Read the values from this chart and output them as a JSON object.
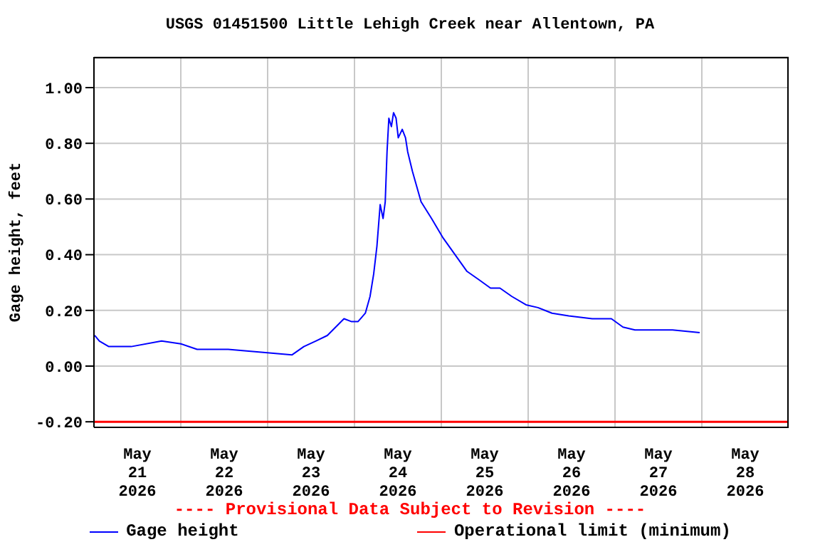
{
  "chart_data": {
    "type": "line",
    "title": "USGS 01451500 Little Lehigh Creek near Allentown, PA",
    "ylabel": "Gage height, feet",
    "x": [
      "2026-05-21T00:12",
      "2026-05-21T01:30",
      "2026-05-21T04:06",
      "2026-05-21T10:18",
      "2026-05-21T18:42",
      "2026-05-22T00:00",
      "2026-05-22T04:30",
      "2026-05-22T13:06",
      "2026-05-22T22:12",
      "2026-05-23T06:42",
      "2026-05-23T10:00",
      "2026-05-23T13:18",
      "2026-05-23T16:30",
      "2026-05-23T21:06",
      "2026-05-23T23:06",
      "2026-05-24T01:00",
      "2026-05-24T03:00",
      "2026-05-24T04:18",
      "2026-05-24T05:18",
      "2026-05-24T06:12",
      "2026-05-24T07:06",
      "2026-05-24T07:54",
      "2026-05-24T08:30",
      "2026-05-24T09:00",
      "2026-05-24T09:30",
      "2026-05-24T10:12",
      "2026-05-24T10:48",
      "2026-05-24T11:30",
      "2026-05-24T12:06",
      "2026-05-24T13:12",
      "2026-05-24T14:06",
      "2026-05-24T14:42",
      "2026-05-24T16:00",
      "2026-05-24T18:24",
      "2026-05-24T21:18",
      "2026-05-25T00:30",
      "2026-05-25T03:48",
      "2026-05-25T07:06",
      "2026-05-25T10:24",
      "2026-05-25T13:36",
      "2026-05-25T16:12",
      "2026-05-25T19:30",
      "2026-05-25T23:24",
      "2026-05-26T02:42",
      "2026-05-26T06:36",
      "2026-05-26T11:12",
      "2026-05-26T17:42",
      "2026-05-26T23:00",
      "2026-05-27T02:12",
      "2026-05-27T05:30",
      "2026-05-27T15:54",
      "2026-05-27T23:24"
    ],
    "series": [
      {
        "name": "Gage height",
        "color": "#0000ff",
        "values": [
          0.11,
          0.09,
          0.07,
          0.07,
          0.09,
          0.08,
          0.06,
          0.06,
          0.05,
          0.04,
          0.07,
          0.09,
          0.11,
          0.17,
          0.16,
          0.16,
          0.19,
          0.25,
          0.33,
          0.43,
          0.58,
          0.53,
          0.59,
          0.77,
          0.89,
          0.86,
          0.91,
          0.89,
          0.82,
          0.85,
          0.82,
          0.77,
          0.7,
          0.59,
          0.53,
          0.46,
          0.4,
          0.34,
          0.31,
          0.28,
          0.28,
          0.25,
          0.22,
          0.21,
          0.19,
          0.18,
          0.17,
          0.17,
          0.14,
          0.13,
          0.13,
          0.12
        ]
      }
    ],
    "xlim": [
      "2026-05-21T00:00",
      "2026-05-29T00:00"
    ],
    "xticks": [
      {
        "value": "2026-05-21T12:00",
        "label": "May 21 2026"
      },
      {
        "value": "2026-05-22T00:00",
        "label": null
      },
      {
        "value": "2026-05-22T12:00",
        "label": "May 22 2026"
      },
      {
        "value": "2026-05-23T00:00",
        "label": null
      },
      {
        "value": "2026-05-23T12:00",
        "label": "May 23 2026"
      },
      {
        "value": "2026-05-24T00:00",
        "label": null
      },
      {
        "value": "2026-05-24T12:00",
        "label": "May 24 2026"
      },
      {
        "value": "2026-05-25T00:00",
        "label": null
      },
      {
        "value": "2026-05-25T12:00",
        "label": "May 25 2026"
      },
      {
        "value": "2026-05-26T00:00",
        "label": null
      },
      {
        "value": "2026-05-26T12:00",
        "label": "May 26 2026"
      },
      {
        "value": "2026-05-27T00:00",
        "label": null
      },
      {
        "value": "2026-05-27T12:00",
        "label": "May 27 2026"
      },
      {
        "value": "2026-05-28T00:00",
        "label": null
      },
      {
        "value": "2026-05-28T12:00",
        "label": "May 28 2026"
      }
    ],
    "ylim": [
      -0.22,
      1.11
    ],
    "yticks": [
      {
        "value": -0.2,
        "label": "-0.20"
      },
      {
        "value": 0,
        "label": "0.00"
      },
      {
        "value": 0.2,
        "label": "0.20"
      },
      {
        "value": 0.4,
        "label": "0.40"
      },
      {
        "value": 0.6,
        "label": "0.60"
      },
      {
        "value": 0.8,
        "label": "0.80"
      },
      {
        "value": 1.0,
        "label": "1.00"
      }
    ],
    "ref_lines": [
      {
        "axis": "y",
        "value": -0.2,
        "label": "Operational limit (minimum)",
        "color": "#ff0000"
      }
    ],
    "annotations": [
      "---- Provisional Data Subject to Revision ----"
    ],
    "grid": true,
    "legend": "bottom",
    "marker": "none",
    "line_style": "solid"
  }
}
